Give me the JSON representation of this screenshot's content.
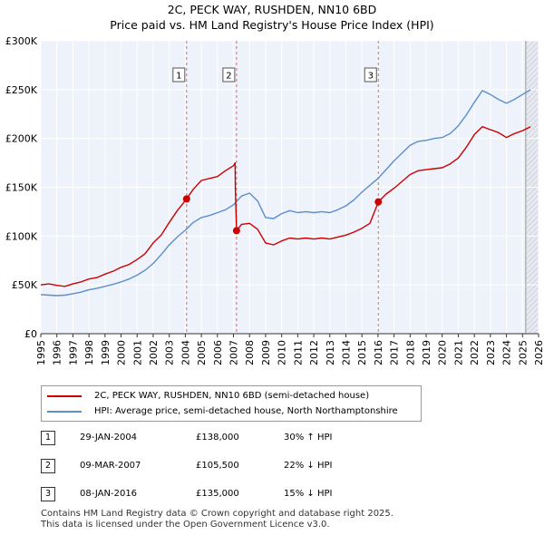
{
  "chart_data": {
    "type": "line",
    "title": "2C, PECK WAY, RUSHDEN, NN10 6BD",
    "subtitle": "Price paid vs. HM Land Registry's House Price Index (HPI)",
    "xlim": [
      1995,
      2026
    ],
    "ylim": [
      0,
      300000
    ],
    "x_ticks": [
      1995,
      1996,
      1997,
      1998,
      1999,
      2000,
      2001,
      2002,
      2003,
      2004,
      2005,
      2006,
      2007,
      2008,
      2009,
      2010,
      2011,
      2012,
      2013,
      2014,
      2015,
      2016,
      2017,
      2018,
      2019,
      2020,
      2021,
      2022,
      2023,
      2024,
      2025,
      2026
    ],
    "y_ticks": [
      {
        "value": 0,
        "label": "£0"
      },
      {
        "value": 50000,
        "label": "£50K"
      },
      {
        "value": 100000,
        "label": "£100K"
      },
      {
        "value": 150000,
        "label": "£150K"
      },
      {
        "value": 200000,
        "label": "£200K"
      },
      {
        "value": 250000,
        "label": "£250K"
      },
      {
        "value": 300000,
        "label": "£300K"
      }
    ],
    "series": [
      {
        "name": "2C, PECK WAY, RUSHDEN, NN10 6BD (semi-detached house)",
        "color": "#cc0000",
        "points": [
          [
            1995.0,
            50000
          ],
          [
            1995.5,
            51000
          ],
          [
            1996.0,
            49500
          ],
          [
            1996.5,
            48500
          ],
          [
            1997.0,
            51000
          ],
          [
            1997.5,
            53000
          ],
          [
            1998.0,
            56000
          ],
          [
            1998.5,
            57500
          ],
          [
            1999.0,
            61000
          ],
          [
            1999.5,
            64000
          ],
          [
            2000.0,
            68000
          ],
          [
            2000.5,
            71000
          ],
          [
            2001.0,
            76000
          ],
          [
            2001.5,
            82000
          ],
          [
            2002.0,
            93000
          ],
          [
            2002.5,
            101000
          ],
          [
            2003.0,
            114000
          ],
          [
            2003.5,
            126000
          ],
          [
            2004.08,
            138000
          ],
          [
            2004.5,
            148000
          ],
          [
            2005.0,
            157000
          ],
          [
            2005.5,
            159000
          ],
          [
            2006.0,
            161000
          ],
          [
            2006.5,
            167000
          ],
          [
            2007.0,
            172000
          ],
          [
            2007.1,
            175000
          ],
          [
            2007.12,
            148000
          ],
          [
            2007.19,
            105500
          ],
          [
            2007.5,
            112000
          ],
          [
            2008.0,
            113000
          ],
          [
            2008.5,
            107000
          ],
          [
            2009.0,
            93000
          ],
          [
            2009.5,
            91000
          ],
          [
            2010.0,
            95000
          ],
          [
            2010.5,
            98000
          ],
          [
            2011.0,
            97000
          ],
          [
            2011.5,
            98000
          ],
          [
            2012.0,
            97000
          ],
          [
            2012.5,
            98000
          ],
          [
            2013.0,
            97000
          ],
          [
            2013.5,
            99000
          ],
          [
            2014.0,
            101000
          ],
          [
            2014.5,
            104000
          ],
          [
            2015.0,
            108000
          ],
          [
            2015.5,
            113000
          ],
          [
            2016.02,
            135000
          ],
          [
            2016.5,
            143000
          ],
          [
            2017.0,
            149000
          ],
          [
            2017.5,
            156000
          ],
          [
            2018.0,
            163000
          ],
          [
            2018.5,
            167000
          ],
          [
            2019.0,
            168000
          ],
          [
            2019.5,
            169000
          ],
          [
            2020.0,
            170000
          ],
          [
            2020.5,
            174000
          ],
          [
            2021.0,
            180000
          ],
          [
            2021.5,
            191000
          ],
          [
            2022.0,
            204000
          ],
          [
            2022.5,
            212000
          ],
          [
            2023.0,
            209000
          ],
          [
            2023.5,
            206000
          ],
          [
            2024.0,
            201000
          ],
          [
            2024.5,
            205000
          ],
          [
            2025.0,
            208000
          ],
          [
            2025.5,
            212000
          ]
        ]
      },
      {
        "name": "HPI: Average price, semi-detached house, North Northamptonshire",
        "color": "#5b8fcc",
        "points": [
          [
            1995.0,
            40000
          ],
          [
            1995.5,
            39500
          ],
          [
            1996.0,
            39000
          ],
          [
            1996.5,
            39500
          ],
          [
            1997.0,
            41000
          ],
          [
            1997.5,
            42500
          ],
          [
            1998.0,
            45000
          ],
          [
            1998.5,
            46500
          ],
          [
            1999.0,
            48500
          ],
          [
            1999.5,
            50500
          ],
          [
            2000.0,
            53000
          ],
          [
            2000.5,
            56000
          ],
          [
            2001.0,
            60000
          ],
          [
            2001.5,
            65000
          ],
          [
            2002.0,
            72000
          ],
          [
            2002.5,
            81000
          ],
          [
            2003.0,
            91000
          ],
          [
            2003.5,
            99000
          ],
          [
            2004.0,
            106000
          ],
          [
            2004.5,
            114000
          ],
          [
            2005.0,
            119000
          ],
          [
            2005.5,
            121000
          ],
          [
            2006.0,
            124000
          ],
          [
            2006.5,
            127000
          ],
          [
            2007.0,
            132000
          ],
          [
            2007.5,
            141000
          ],
          [
            2008.0,
            144000
          ],
          [
            2008.5,
            136000
          ],
          [
            2009.0,
            119000
          ],
          [
            2009.5,
            118000
          ],
          [
            2010.0,
            123000
          ],
          [
            2010.5,
            126000
          ],
          [
            2011.0,
            124000
          ],
          [
            2011.5,
            125000
          ],
          [
            2012.0,
            124000
          ],
          [
            2012.5,
            125000
          ],
          [
            2013.0,
            124000
          ],
          [
            2013.5,
            127000
          ],
          [
            2014.0,
            131000
          ],
          [
            2014.5,
            137000
          ],
          [
            2015.0,
            145000
          ],
          [
            2015.5,
            152000
          ],
          [
            2016.0,
            159000
          ],
          [
            2016.5,
            168000
          ],
          [
            2017.0,
            177000
          ],
          [
            2017.5,
            185000
          ],
          [
            2018.0,
            193000
          ],
          [
            2018.5,
            197000
          ],
          [
            2019.0,
            198000
          ],
          [
            2019.5,
            200000
          ],
          [
            2020.0,
            201000
          ],
          [
            2020.5,
            205000
          ],
          [
            2021.0,
            213000
          ],
          [
            2021.5,
            224000
          ],
          [
            2022.0,
            237000
          ],
          [
            2022.5,
            249000
          ],
          [
            2023.0,
            245000
          ],
          [
            2023.5,
            240000
          ],
          [
            2024.0,
            236000
          ],
          [
            2024.5,
            240000
          ],
          [
            2025.0,
            245000
          ],
          [
            2025.5,
            250000
          ]
        ]
      }
    ],
    "sales": [
      {
        "id": "1",
        "x": 2004.08,
        "value": 138000
      },
      {
        "id": "2",
        "x": 2007.19,
        "value": 105500
      },
      {
        "id": "3",
        "x": 2016.02,
        "value": 135000
      }
    ],
    "forecast_start": 2025.2
  },
  "legend": {
    "property": "2C, PECK WAY, RUSHDEN, NN10 6BD (semi-detached house)",
    "hpi": "HPI: Average price, semi-detached house, North Northamptonshire"
  },
  "transactions": [
    {
      "id": "1",
      "date": "29-JAN-2004",
      "price": "£138,000",
      "hpi": "30% ↑ HPI"
    },
    {
      "id": "2",
      "date": "09-MAR-2007",
      "price": "£105,500",
      "hpi": "22% ↓ HPI"
    },
    {
      "id": "3",
      "date": "08-JAN-2016",
      "price": "£135,000",
      "hpi": "15% ↓ HPI"
    }
  ],
  "footer": {
    "line1": "Contains HM Land Registry data © Crown copyright and database right 2025.",
    "line2": "This data is licensed under the Open Government Licence v3.0."
  }
}
